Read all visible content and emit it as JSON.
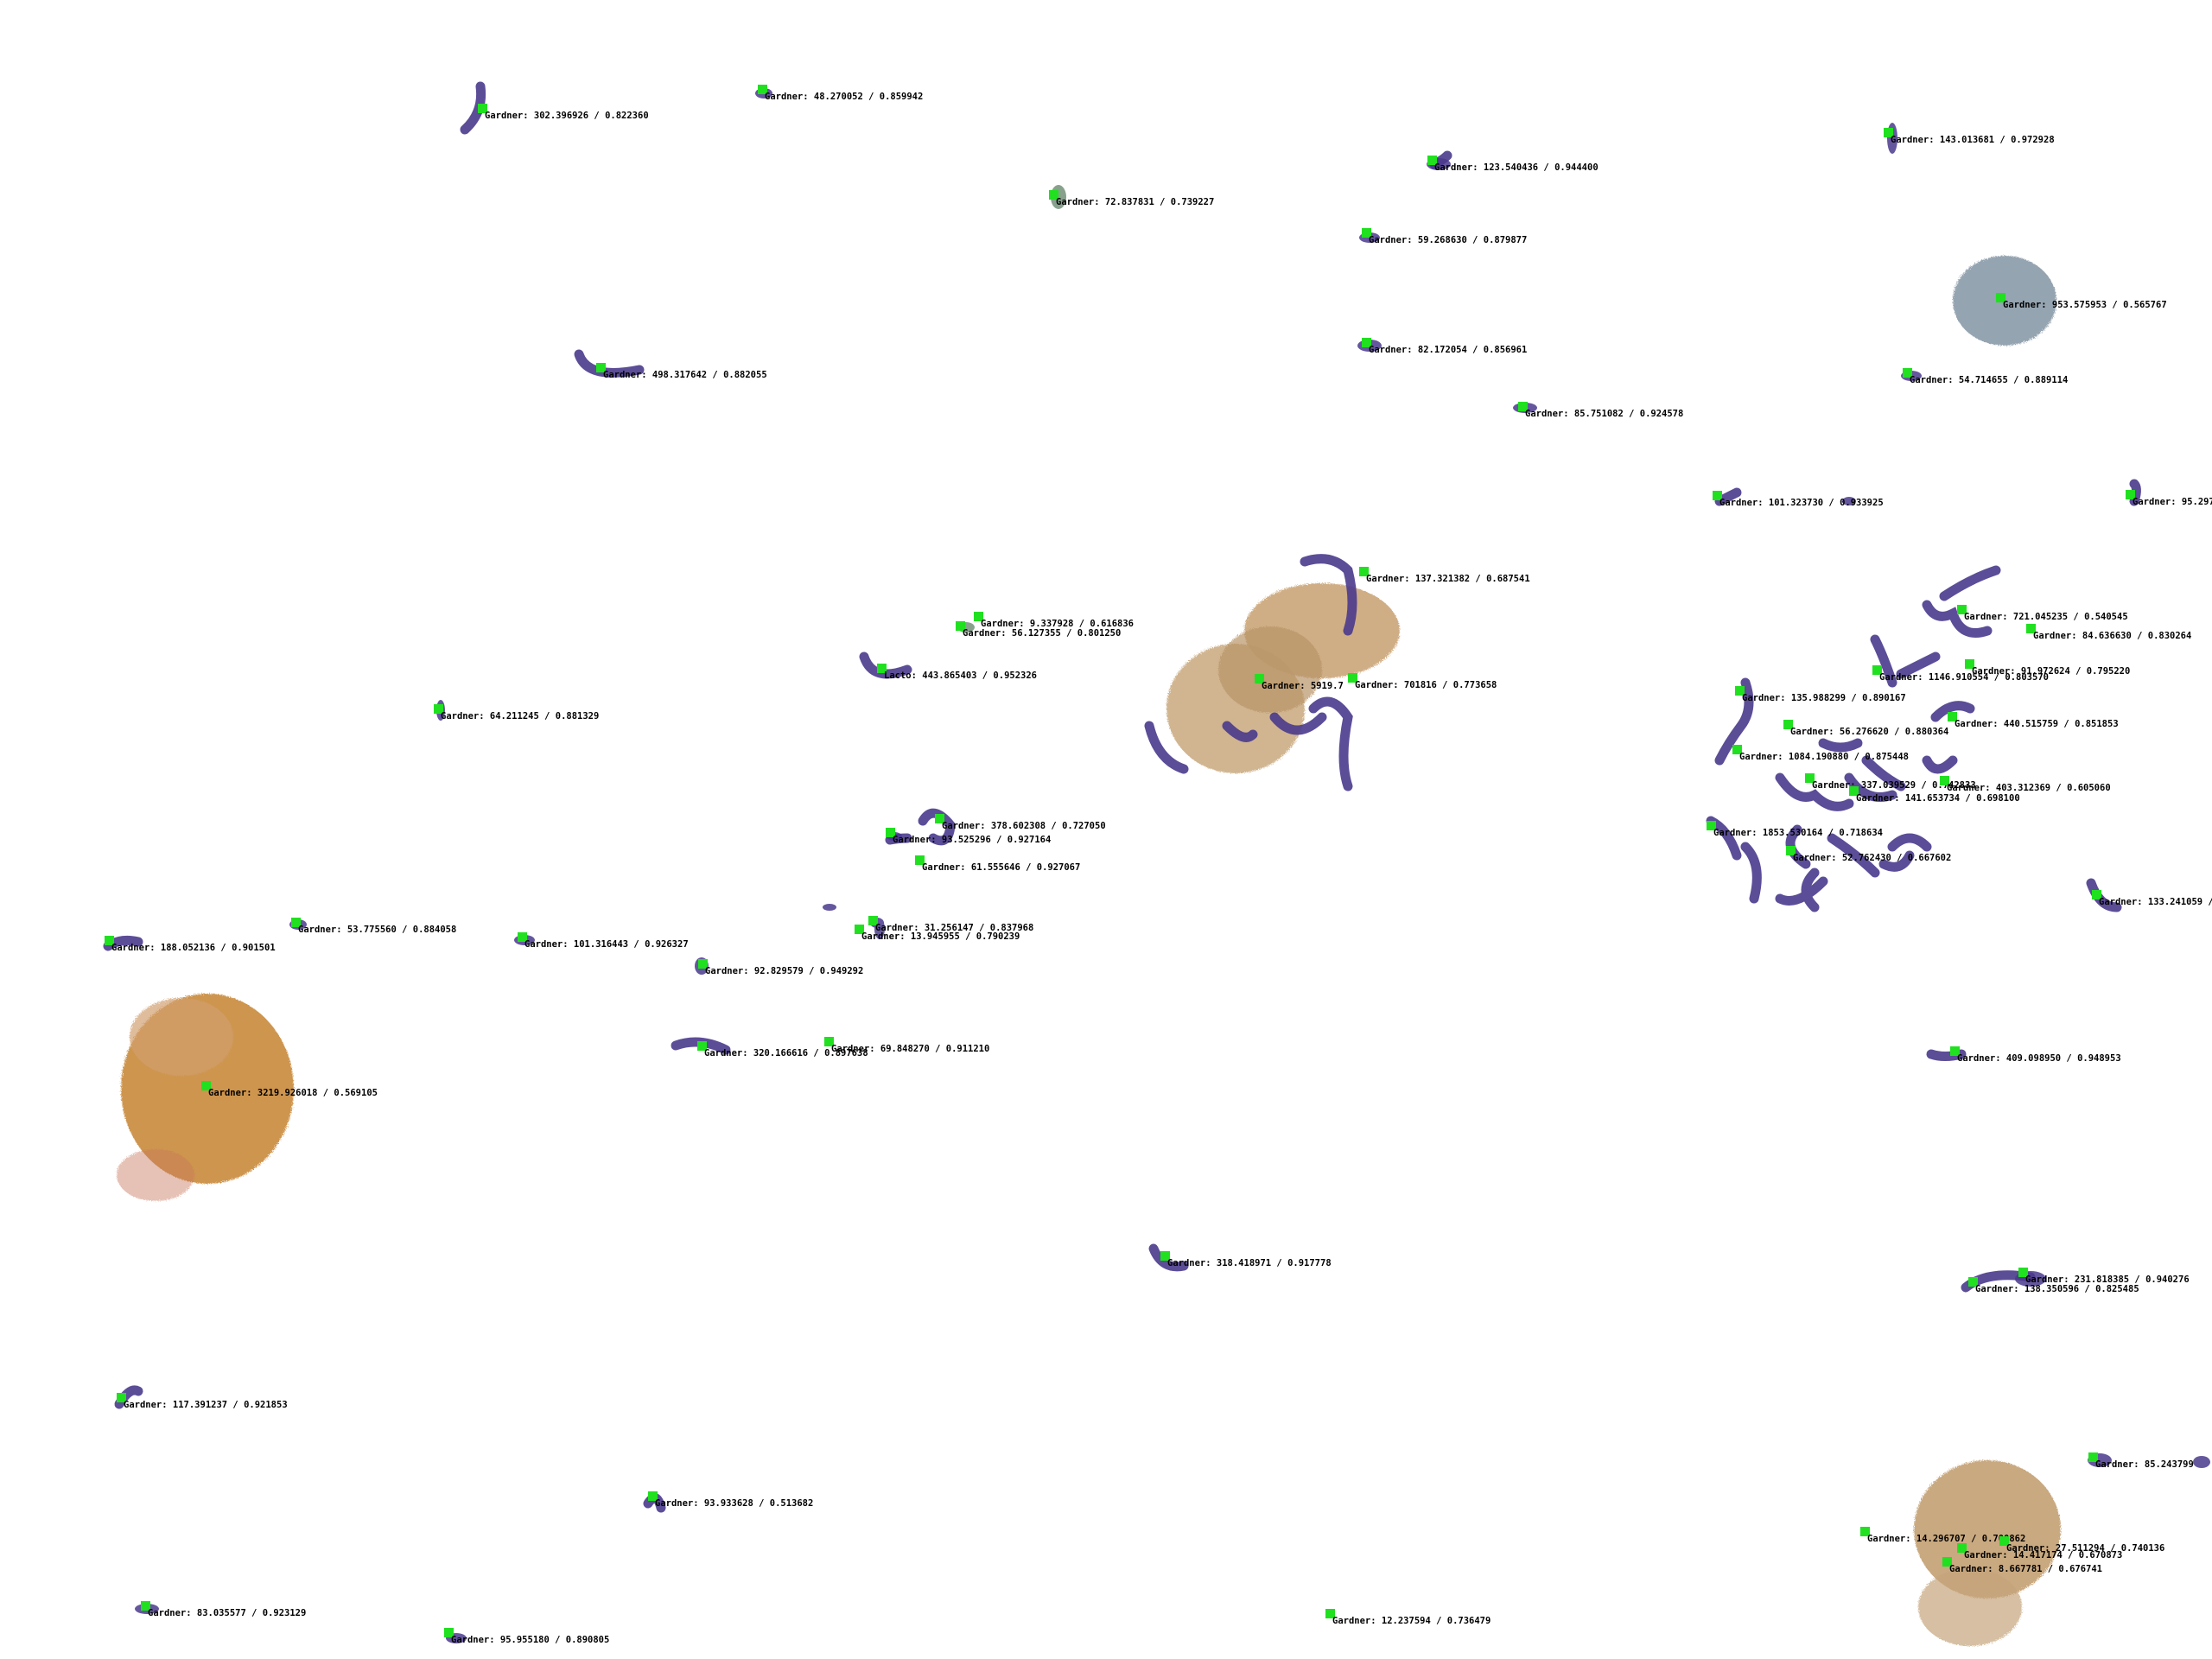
{
  "image": {
    "description_free": true,
    "palette": {
      "background": "#ffffff",
      "marker": "#20e020",
      "purple": "#4a3a8c",
      "tan": "#c8a070",
      "orange": "#c08030",
      "gray": "#8a9aa8"
    }
  },
  "detections": [
    {
      "label": "Gardner: 302.396926 / 0.822360"
    },
    {
      "label": "Gardner: 48.270052 / 0.859942"
    },
    {
      "label": "Gardner: 72.837831 / 0.739227"
    },
    {
      "label": "Gardner: 123.540436 / 0.944400"
    },
    {
      "label": "Gardner: 143.013681 / 0.972928"
    },
    {
      "label": "Gardner: 59.268630 / 0.879877"
    },
    {
      "label": "Gardner: 953.575953 / 0.565767"
    },
    {
      "label": "Gardner: 498.317642 / 0.882055"
    },
    {
      "label": "Gardner: 82.172054 / 0.856961"
    },
    {
      "label": "Gardner: 54.714655 / 0.889114"
    },
    {
      "label": "Gardner: 85.751082 / 0.924578"
    },
    {
      "label": "Gardner: 101.323730 / 0.933925"
    },
    {
      "label": "Gardner: 95.2970"
    },
    {
      "label": "Gardner: 137.321382 / 0.687541"
    },
    {
      "label": "Gardner: 9.337928 / 0.616836"
    },
    {
      "label": "Gardner: 56.127355 / 0.801250"
    },
    {
      "label": "Gardner: 721.045235 / 0.540545"
    },
    {
      "label": "Gardner: 84.636630 / 0.830264"
    },
    {
      "label": "Lacto: 443.865403 / 0.952326"
    },
    {
      "label": "Gardner: 5919.7"
    },
    {
      "label": "Gardner: 701816 / 0.773658"
    },
    {
      "label": "Gardner: 1146.910554 / 0.803570"
    },
    {
      "label": "Gardner: 91.972624 / 0.795220"
    },
    {
      "label": "Gardner: 135.988299 / 0.890167"
    },
    {
      "label": "Gardner: 64.211245 / 0.881329"
    },
    {
      "label": "Gardner: 440.515759 / 0.851853"
    },
    {
      "label": "Gardner: 56.276620 / 0.880364"
    },
    {
      "label": "Gardner: 1084.190880 / 0.875448"
    },
    {
      "label": "Gardner: 337.039529 / 0.742833"
    },
    {
      "label": "Gardner: 403.312369 / 0.605060"
    },
    {
      "label": "Gardner: 141.653734 / 0.698100"
    },
    {
      "label": "Gardner: 378.602308 / 0.727050"
    },
    {
      "label": "Gardner: 93.525296 / 0.927164"
    },
    {
      "label": "Gardner: 1853.530164 / 0.718634"
    },
    {
      "label": "Gardner: 61.555646 / 0.927067"
    },
    {
      "label": "Gardner: 52.762430 / 0.667602"
    },
    {
      "label": "Gardner: 133.241059 /"
    },
    {
      "label": "Gardner: 188.052136 / 0.901501"
    },
    {
      "label": "Gardner: 53.775560 / 0.884058"
    },
    {
      "label": "Gardner: 101.316443 / 0.926327"
    },
    {
      "label": "Gardner: 31.256147 / 0.837968"
    },
    {
      "label": "Gardner: 13.945955 / 0.790239"
    },
    {
      "label": "Gardner: 92.829579 / 0.949292"
    },
    {
      "label": "Gardner: 320.166616 / 0.897638"
    },
    {
      "label": "Gardner: 69.848270 / 0.911210"
    },
    {
      "label": "Gardner: 409.098950 / 0.948953"
    },
    {
      "label": "Gardner: 3219.926018 / 0.569105"
    },
    {
      "label": "Gardner: 318.418971 / 0.917778"
    },
    {
      "label": "Gardner: 231.818385 / 0.940276"
    },
    {
      "label": "Gardner: 138.350596 / 0.825485"
    },
    {
      "label": "Gardner: 117.391237 / 0.921853"
    },
    {
      "label": "Gardner: 85.243799"
    },
    {
      "label": "Gardner: 93.933628 / 0.513682"
    },
    {
      "label": "Gardner: 14.296707 / 0.700862"
    },
    {
      "label": "Gardner: 27.511294 / 0.740136"
    },
    {
      "label": "Gardner: 14.417174 / 0.670873"
    },
    {
      "label": "Gardner: 8.667781 / 0.676741"
    },
    {
      "label": "Gardner: 83.035577 / 0.923129"
    },
    {
      "label": "Gardner: 95.955180 / 0.890805"
    },
    {
      "label": "Gardner: 12.237594 / 0.736479"
    }
  ]
}
